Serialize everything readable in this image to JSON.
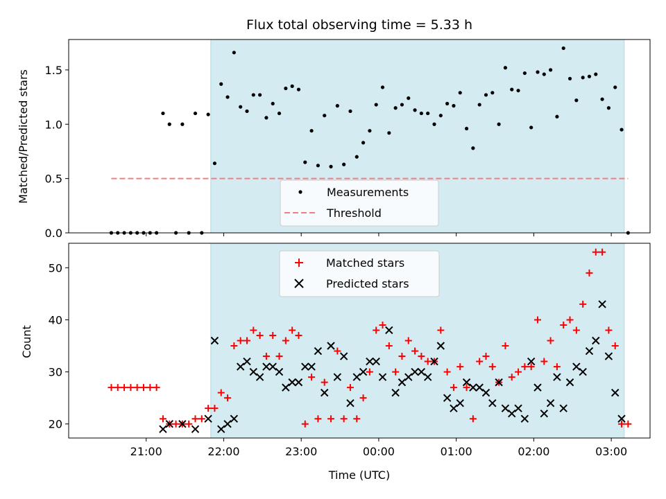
{
  "chart_data": [
    {
      "type": "scatter",
      "title": "Flux total observing time = 5.33 h",
      "xlabel": "",
      "ylabel": "Matched/Predicted stars",
      "ylim": [
        0,
        1.78
      ],
      "yticks": [
        0,
        0.5,
        1.0,
        1.5
      ],
      "ytick_labels": [
        "0.0",
        "0.5",
        "1.0",
        "1.5"
      ],
      "legend_position": "lower-center",
      "shaded_region": [
        "21:50",
        "03:10"
      ],
      "series": [
        {
          "name": "Measurements",
          "marker": "dot",
          "color": "#000000",
          "x": [
            "20:33",
            "20:38",
            "20:43",
            "20:48",
            "20:53",
            "20:58",
            "21:03",
            "21:08",
            "21:13",
            "21:18",
            "21:23",
            "21:28",
            "21:33",
            "21:38",
            "21:43",
            "21:48",
            "21:53",
            "21:58",
            "22:03",
            "22:08",
            "22:13",
            "22:18",
            "22:23",
            "22:28",
            "22:33",
            "22:38",
            "22:43",
            "22:48",
            "22:53",
            "22:58",
            "23:03",
            "23:08",
            "23:13",
            "23:18",
            "23:23",
            "23:28",
            "23:33",
            "23:38",
            "23:43",
            "23:48",
            "23:53",
            "23:58",
            "00:03",
            "00:08",
            "00:13",
            "00:18",
            "00:23",
            "00:28",
            "00:33",
            "00:38",
            "00:43",
            "00:48",
            "00:53",
            "00:58",
            "01:03",
            "01:08",
            "01:13",
            "01:18",
            "01:23",
            "01:28",
            "01:33",
            "01:38",
            "01:43",
            "01:48",
            "01:53",
            "01:58",
            "02:03",
            "02:08",
            "02:13",
            "02:18",
            "02:23",
            "02:28",
            "02:33",
            "02:38",
            "02:43",
            "02:48",
            "02:53",
            "02:58",
            "03:03",
            "03:08",
            "03:13"
          ],
          "y": [
            0,
            0,
            0,
            0,
            0,
            0,
            0,
            0,
            1.1,
            1.0,
            0,
            1.0,
            0,
            1.1,
            0,
            1.09,
            0.64,
            1.37,
            1.25,
            1.66,
            1.16,
            1.12,
            1.27,
            1.27,
            1.06,
            1.19,
            1.1,
            1.33,
            1.35,
            1.32,
            0.65,
            0.94,
            0.62,
            1.08,
            0.61,
            1.17,
            0.63,
            1.12,
            0.7,
            0.83,
            0.94,
            1.18,
            1.34,
            0.92,
            1.15,
            1.18,
            1.24,
            1.13,
            1.1,
            1.1,
            1.0,
            1.08,
            1.19,
            1.17,
            1.29,
            0.96,
            0.78,
            1.18,
            1.27,
            1.29,
            1.0,
            1.52,
            1.32,
            1.31,
            1.47,
            0.97,
            1.48,
            1.46,
            1.5,
            1.07,
            1.7,
            1.42,
            1.22,
            1.43,
            1.44,
            1.46,
            1.23,
            1.15,
            1.34,
            0.95,
            0
          ]
        },
        {
          "name": "Threshold",
          "type": "line",
          "style": "dashed",
          "color": "#f08080",
          "x": [
            "20:33",
            "03:13"
          ],
          "y": [
            0.5,
            0.5
          ]
        }
      ]
    },
    {
      "type": "scatter",
      "title": "",
      "xlabel": "Time (UTC)",
      "ylabel": "Count",
      "ylim": [
        17.3,
        54.7
      ],
      "yticks": [
        20,
        30,
        40,
        50
      ],
      "ytick_labels": [
        "20",
        "30",
        "40",
        "50"
      ],
      "x_ticks": [
        "21:00",
        "22:00",
        "23:00",
        "00:00",
        "01:00",
        "02:00",
        "03:00"
      ],
      "legend_position": "top-center",
      "shaded_region": [
        "21:50",
        "03:10"
      ],
      "series": [
        {
          "name": "Matched stars",
          "marker": "plus",
          "color": "#ff0000",
          "x": [
            "20:33",
            "20:38",
            "20:43",
            "20:48",
            "20:53",
            "20:58",
            "21:03",
            "21:08",
            "21:13",
            "21:18",
            "21:23",
            "21:28",
            "21:33",
            "21:38",
            "21:43",
            "21:48",
            "21:53",
            "21:58",
            "22:03",
            "22:08",
            "22:13",
            "22:18",
            "22:23",
            "22:28",
            "22:33",
            "22:38",
            "22:43",
            "22:48",
            "22:53",
            "22:58",
            "23:03",
            "23:08",
            "23:13",
            "23:18",
            "23:23",
            "23:28",
            "23:33",
            "23:38",
            "23:43",
            "23:48",
            "23:53",
            "23:58",
            "00:03",
            "00:08",
            "00:13",
            "00:18",
            "00:23",
            "00:28",
            "00:33",
            "00:38",
            "00:43",
            "00:48",
            "00:53",
            "00:58",
            "01:03",
            "01:08",
            "01:13",
            "01:18",
            "01:23",
            "01:28",
            "01:33",
            "01:38",
            "01:43",
            "01:48",
            "01:53",
            "01:58",
            "02:03",
            "02:08",
            "02:13",
            "02:18",
            "02:23",
            "02:28",
            "02:33",
            "02:38",
            "02:43",
            "02:48",
            "02:53",
            "02:58",
            "03:03",
            "03:08",
            "03:13"
          ],
          "y": [
            27,
            27,
            27,
            27,
            27,
            27,
            27,
            27,
            21,
            20,
            20,
            20,
            20,
            21,
            21,
            23,
            23,
            26,
            25,
            35,
            36,
            36,
            38,
            37,
            33,
            37,
            33,
            36,
            38,
            37,
            20,
            29,
            21,
            28,
            21,
            34,
            21,
            27,
            21,
            25,
            30,
            38,
            39,
            35,
            30,
            33,
            36,
            34,
            33,
            32,
            32,
            38,
            30,
            27,
            31,
            27,
            21,
            32,
            33,
            31,
            28,
            35,
            29,
            30,
            31,
            31,
            40,
            32,
            36,
            31,
            39,
            40,
            38,
            43,
            49,
            53,
            53,
            38,
            35,
            20,
            20
          ]
        },
        {
          "name": "Predicted stars",
          "marker": "x",
          "color": "#000000",
          "x": [
            "21:13",
            "21:18",
            "21:28",
            "21:38",
            "21:48",
            "21:53",
            "21:58",
            "22:03",
            "22:08",
            "22:13",
            "22:18",
            "22:23",
            "22:28",
            "22:33",
            "22:38",
            "22:43",
            "22:48",
            "22:53",
            "22:58",
            "23:03",
            "23:08",
            "23:13",
            "23:18",
            "23:23",
            "23:28",
            "23:33",
            "23:38",
            "23:43",
            "23:48",
            "23:53",
            "23:58",
            "00:03",
            "00:08",
            "00:13",
            "00:18",
            "00:23",
            "00:28",
            "00:33",
            "00:38",
            "00:43",
            "00:48",
            "00:53",
            "00:58",
            "01:03",
            "01:08",
            "01:13",
            "01:18",
            "01:23",
            "01:28",
            "01:33",
            "01:38",
            "01:43",
            "01:48",
            "01:53",
            "01:58",
            "02:03",
            "02:08",
            "02:13",
            "02:18",
            "02:23",
            "02:28",
            "02:33",
            "02:38",
            "02:43",
            "02:48",
            "02:53",
            "02:58",
            "03:03",
            "03:08"
          ],
          "y": [
            19,
            20,
            20,
            19,
            21,
            36,
            19,
            20,
            21,
            31,
            32,
            30,
            29,
            31,
            31,
            30,
            27,
            28,
            28,
            31,
            31,
            34,
            26,
            35,
            29,
            33,
            24,
            29,
            30,
            32,
            32,
            29,
            38,
            26,
            28,
            29,
            30,
            30,
            29,
            32,
            35,
            25,
            23,
            24,
            28,
            27,
            27,
            26,
            24,
            28,
            23,
            22,
            23,
            21,
            32,
            27,
            22,
            24,
            29,
            23,
            28,
            31,
            30,
            34,
            36,
            43,
            33,
            26,
            21
          ]
        }
      ]
    }
  ]
}
